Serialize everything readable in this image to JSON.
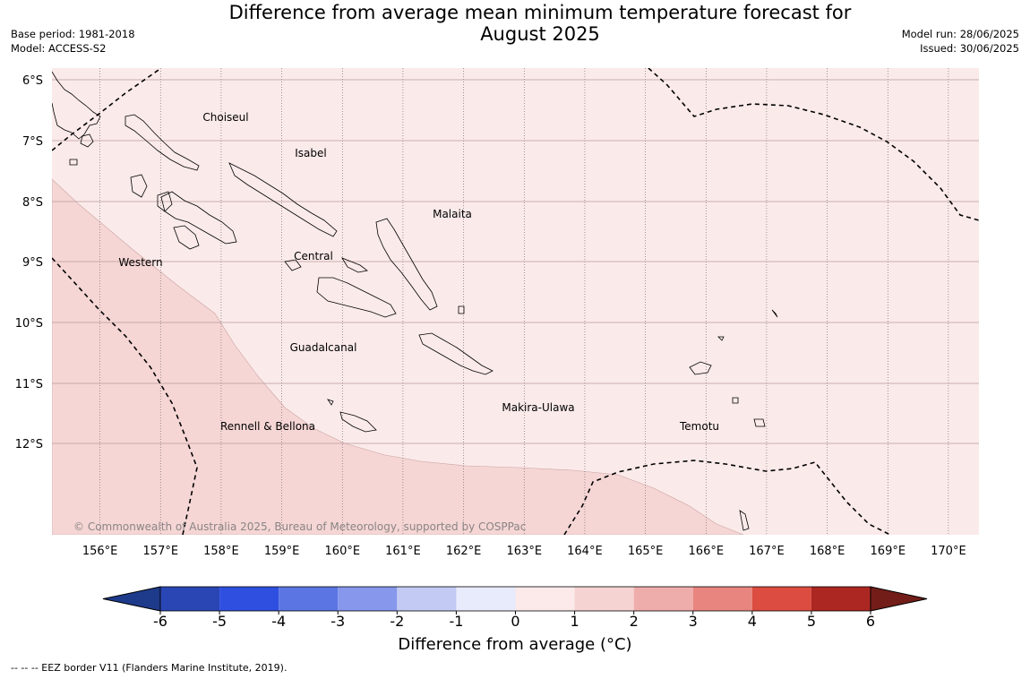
{
  "header": {
    "title_line1": "Difference from average mean minimum temperature forecast for",
    "title_line2": "August 2025",
    "base_period": "Base period: 1981-2018",
    "model": "Model: ACCESS-S2",
    "model_run": "Model run: 28/06/2025",
    "issued": "Issued: 30/06/2025"
  },
  "map": {
    "lat_labels": [
      "6°S",
      "7°S",
      "8°S",
      "9°S",
      "10°S",
      "11°S",
      "12°S"
    ],
    "lon_labels": [
      "156°E",
      "157°E",
      "158°E",
      "159°E",
      "160°E",
      "161°E",
      "162°E",
      "163°E",
      "164°E",
      "165°E",
      "166°E",
      "167°E",
      "168°E",
      "169°E",
      "170°E"
    ],
    "provinces": [
      "Choiseul",
      "Isabel",
      "Malaita",
      "Western",
      "Central",
      "Guadalcanal",
      "Makira-Ulawa",
      "Rennell & Bellona",
      "Temotu"
    ],
    "copyright": "© Commonwealth of Australia 2025, Bureau of Meteorology, supported by COSPPac"
  },
  "colorbar": {
    "ticks": [
      "-6",
      "-5",
      "-4",
      "-3",
      "-2",
      "-1",
      "0",
      "1",
      "2",
      "3",
      "4",
      "5",
      "6"
    ],
    "colors": [
      "#1e3a8a",
      "#2a45b4",
      "#2f4fe0",
      "#5b75e3",
      "#8697ec",
      "#c3caf3",
      "#e8ebfb",
      "#fbeae9",
      "#f5d3d2",
      "#eeadab",
      "#e8857e",
      "#dc4c40",
      "#ac2722",
      "#731d18"
    ],
    "title": "Difference from average (°C)"
  },
  "footer": {
    "legend_text": "--  --  -- EEZ border V11 (Flanders Marine Institute, 2019)."
  }
}
